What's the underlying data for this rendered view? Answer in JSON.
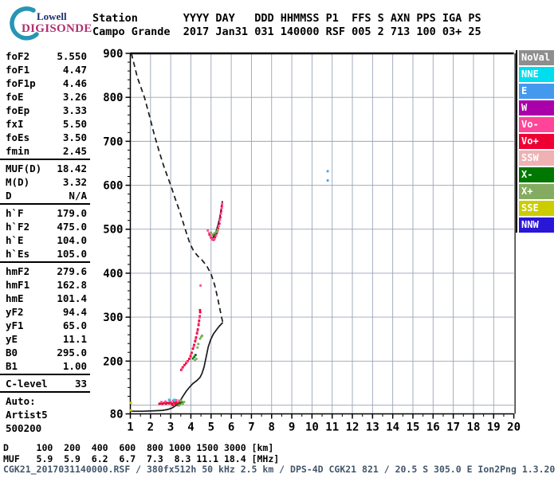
{
  "header": {
    "logo": {
      "line1": "Lowell",
      "line2": "DIGISONDE"
    },
    "row1": "Station       YYYY DAY   DDD HHMMSS P1  FFS S AXN PPS IGA PS",
    "row2": "Campo Grande  2017 Jan31 031 140000 RSF 005 2 713 100 03+ 25"
  },
  "params": {
    "groups": [
      {
        "rows": [
          [
            "foF2",
            "5.550"
          ],
          [
            "foF1",
            "4.47"
          ],
          [
            "foF1p",
            "4.46"
          ],
          [
            "foE",
            "3.26"
          ],
          [
            "foEp",
            "3.33"
          ],
          [
            "fxI",
            "5.50"
          ],
          [
            "foEs",
            "3.50"
          ],
          [
            "fmin",
            "2.45"
          ]
        ]
      },
      {
        "rows": [
          [
            "MUF(D)",
            "18.42"
          ],
          [
            "M(D)",
            "3.32"
          ],
          [
            "D",
            "N/A"
          ]
        ]
      },
      {
        "rows": [
          [
            "h`F",
            "179.0"
          ],
          [
            "h`F2",
            "475.0"
          ],
          [
            "h`E",
            "104.0"
          ],
          [
            "h`Es",
            "105.0"
          ]
        ]
      },
      {
        "rows": [
          [
            "hmF2",
            "279.6"
          ],
          [
            "hmF1",
            "162.8"
          ],
          [
            "hmE",
            "101.4"
          ],
          [
            "yF2",
            "94.4"
          ],
          [
            "yF1",
            "65.0"
          ],
          [
            "yE",
            "11.1"
          ],
          [
            "B0",
            "295.0"
          ],
          [
            "B1",
            "1.00"
          ]
        ]
      },
      {
        "rows": [
          [
            "C-level",
            "33"
          ]
        ]
      },
      {
        "rows": [
          [
            "Auto:",
            ""
          ],
          [
            "Artist5",
            ""
          ],
          [
            "500200",
            ""
          ]
        ]
      }
    ]
  },
  "legend": {
    "items": [
      {
        "label": "NoVal",
        "color": "#8e8e8e"
      },
      {
        "label": "NNE",
        "color": "#00ddee"
      },
      {
        "label": "E",
        "color": "#4499ee"
      },
      {
        "label": "W",
        "color": "#aa00aa"
      },
      {
        "label": "Vo-",
        "color": "#ff4499"
      },
      {
        "label": "Vo+",
        "color": "#ee0033"
      },
      {
        "label": "SSW",
        "color": "#eeb2b2"
      },
      {
        "label": "X-",
        "color": "#007700"
      },
      {
        "label": "X+",
        "color": "#85ab61"
      },
      {
        "label": "SSE",
        "color": "#cccc00"
      },
      {
        "label": "NNW",
        "color": "#2a16d6"
      }
    ]
  },
  "chart_data": {
    "type": "scatter",
    "title": "",
    "xlabel": "",
    "ylabel": "",
    "xlim": [
      1,
      20
    ],
    "ylim": [
      80,
      900
    ],
    "grid": true,
    "x_ticks": [
      1,
      2,
      3,
      4,
      5,
      6,
      7,
      8,
      9,
      10,
      11,
      12,
      13,
      14,
      15,
      16,
      17,
      18,
      19,
      20
    ],
    "y_ticks": [
      900,
      800,
      700,
      600,
      500,
      400,
      300,
      200
    ],
    "y_bottom_tick": 80,
    "profiles": {
      "topside_dashed": [
        [
          1.05,
          900
        ],
        [
          1.35,
          845
        ],
        [
          1.7,
          800
        ],
        [
          1.95,
          757
        ],
        [
          2.18,
          716
        ],
        [
          2.42,
          678
        ],
        [
          2.64,
          646
        ],
        [
          2.84,
          620
        ],
        [
          3.02,
          598
        ],
        [
          3.22,
          570
        ],
        [
          3.42,
          544
        ],
        [
          3.6,
          518
        ],
        [
          3.76,
          494
        ],
        [
          3.95,
          468
        ],
        [
          4.12,
          452
        ],
        [
          4.32,
          440
        ],
        [
          4.55,
          430
        ],
        [
          4.78,
          417
        ],
        [
          5.0,
          398
        ],
        [
          5.18,
          373
        ],
        [
          5.32,
          345
        ],
        [
          5.44,
          318
        ],
        [
          5.53,
          298
        ],
        [
          5.58,
          288
        ]
      ],
      "bottomside_solid": [
        [
          1.0,
          86
        ],
        [
          1.6,
          86
        ],
        [
          2.2,
          87
        ],
        [
          2.6,
          88
        ],
        [
          2.85,
          90
        ],
        [
          3.05,
          93
        ],
        [
          3.2,
          97
        ],
        [
          3.32,
          102
        ],
        [
          3.42,
          107
        ],
        [
          3.5,
          112
        ],
        [
          3.62,
          121
        ],
        [
          3.76,
          131
        ],
        [
          3.92,
          140
        ],
        [
          4.1,
          149
        ],
        [
          4.3,
          156
        ],
        [
          4.45,
          163
        ],
        [
          4.55,
          172
        ],
        [
          4.65,
          186
        ],
        [
          4.76,
          210
        ],
        [
          4.86,
          232
        ],
        [
          4.98,
          249
        ],
        [
          5.12,
          262
        ],
        [
          5.28,
          272
        ],
        [
          5.42,
          280
        ],
        [
          5.52,
          285
        ],
        [
          5.58,
          288
        ]
      ],
      "f2_trace_fit": [
        [
          5.06,
          478
        ],
        [
          5.16,
          486
        ],
        [
          5.26,
          497
        ],
        [
          5.34,
          509
        ],
        [
          5.42,
          524
        ],
        [
          5.48,
          539
        ],
        [
          5.53,
          553
        ],
        [
          5.56,
          564
        ]
      ]
    },
    "echo_points": [
      {
        "category": "Vo+",
        "color": "#ee0033",
        "points": [
          [
            2.44,
            103
          ],
          [
            2.52,
            104
          ],
          [
            2.6,
            103
          ],
          [
            2.68,
            105
          ],
          [
            2.76,
            103
          ],
          [
            2.84,
            105
          ],
          [
            2.92,
            104
          ],
          [
            3.0,
            106
          ],
          [
            3.06,
            103
          ],
          [
            3.1,
            100
          ],
          [
            3.16,
            106
          ],
          [
            3.22,
            103
          ],
          [
            3.28,
            106
          ],
          [
            3.34,
            100
          ],
          [
            3.4,
            104
          ],
          [
            3.46,
            107
          ],
          [
            3.52,
            180
          ],
          [
            3.6,
            186
          ],
          [
            3.68,
            191
          ],
          [
            3.76,
            195
          ],
          [
            3.84,
            200
          ],
          [
            3.92,
            205
          ],
          [
            3.98,
            211
          ],
          [
            4.04,
            219
          ],
          [
            4.1,
            228
          ],
          [
            4.16,
            237
          ],
          [
            4.21,
            245
          ],
          [
            4.26,
            254
          ],
          [
            4.3,
            263
          ],
          [
            4.34,
            272
          ],
          [
            4.38,
            282
          ],
          [
            4.41,
            292
          ],
          [
            4.44,
            302
          ],
          [
            4.46,
            311
          ],
          [
            4.45,
            316
          ],
          [
            4.92,
            488
          ],
          [
            5.0,
            481
          ],
          [
            5.06,
            477
          ],
          [
            5.13,
            476
          ],
          [
            5.2,
            482
          ],
          [
            5.28,
            491
          ],
          [
            5.35,
            501
          ],
          [
            5.41,
            513
          ],
          [
            5.46,
            527
          ],
          [
            5.5,
            541
          ],
          [
            5.53,
            552
          ]
        ]
      },
      {
        "category": "Vo-",
        "color": "#ff4c9b",
        "points": [
          [
            2.54,
            107
          ],
          [
            2.74,
            108
          ],
          [
            2.96,
            109
          ],
          [
            3.12,
            110
          ],
          [
            3.28,
            111
          ],
          [
            3.42,
            110
          ],
          [
            3.56,
            183
          ],
          [
            3.8,
            198
          ],
          [
            4.0,
            215
          ],
          [
            4.14,
            233
          ],
          [
            4.24,
            250
          ],
          [
            4.32,
            267
          ],
          [
            4.39,
            286
          ],
          [
            4.43,
            299
          ],
          [
            4.48,
            372
          ],
          [
            4.84,
            497
          ],
          [
            4.9,
            491
          ],
          [
            4.97,
            484
          ],
          [
            5.05,
            478
          ],
          [
            5.17,
            478
          ],
          [
            5.25,
            486
          ],
          [
            5.32,
            495
          ],
          [
            5.38,
            507
          ],
          [
            5.44,
            521
          ],
          [
            5.49,
            535
          ],
          [
            5.53,
            548
          ],
          [
            5.55,
            558
          ]
        ]
      },
      {
        "category": "X-",
        "color": "#007700",
        "points": [
          [
            3.35,
            102
          ],
          [
            3.47,
            104
          ],
          [
            3.57,
            106
          ],
          [
            4.1,
            206
          ],
          [
            4.17,
            210
          ],
          [
            4.23,
            214
          ],
          [
            5.1,
            487
          ],
          [
            5.21,
            490
          ]
        ]
      },
      {
        "category": "X+",
        "color": "#7fae5c",
        "points": [
          [
            3.42,
            99
          ],
          [
            3.52,
            110
          ],
          [
            3.6,
            103
          ],
          [
            3.66,
            107
          ],
          [
            4.2,
            202
          ],
          [
            4.27,
            205
          ],
          [
            4.33,
            231
          ],
          [
            4.37,
            239
          ],
          [
            4.45,
            251
          ],
          [
            4.51,
            255
          ],
          [
            4.56,
            258
          ],
          [
            5.0,
            492
          ],
          [
            5.07,
            488
          ],
          [
            5.17,
            491
          ],
          [
            5.27,
            494
          ],
          [
            5.33,
            499
          ]
        ]
      },
      {
        "category": "NNE",
        "color": "#00d0ee",
        "points": [
          [
            2.92,
            112
          ],
          [
            3.18,
            112
          ]
        ]
      },
      {
        "category": "E",
        "color": "#44a0f0",
        "points": [
          [
            10.78,
            632
          ],
          [
            10.78,
            611
          ]
        ]
      },
      {
        "category": "SSE",
        "color": "#cccc00",
        "points": [
          [
            1.03,
            105
          ],
          [
            1.03,
            88
          ]
        ]
      }
    ],
    "muf_table": {
      "d_km": [
        100,
        200,
        400,
        600,
        800,
        1000,
        1500,
        3000
      ],
      "muf_mhz": [
        5.9,
        5.9,
        6.2,
        6.7,
        7.3,
        8.3,
        11.1,
        18.4
      ]
    }
  },
  "footer": {
    "row1": "D     100  200  400  600  800 1000 1500 3000 [km]",
    "row2": "MUF   5.9  5.9  6.2  6.7  7.3  8.3 11.1 18.4 [MHz]",
    "row3": "CGK21_2017031140000.RSF / 380fx512h 50 kHz 2.5 km / DPS-4D CGK21 821 / 20.5 S 305.0 E Ion2Png 1.3.20"
  }
}
